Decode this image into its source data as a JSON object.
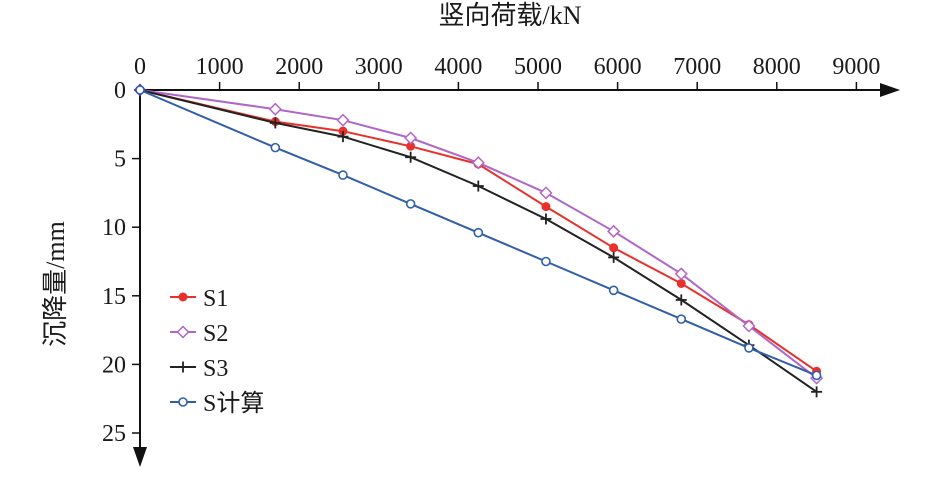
{
  "chart_data": {
    "type": "line",
    "xlabel": "竖向荷载/kN",
    "ylabel": "沉降量/mm",
    "x_axis_position": "top",
    "y_axis_inverted": true,
    "xlim": [
      0,
      9000
    ],
    "ylim": [
      0,
      25
    ],
    "x_ticks": [
      "0",
      "1000",
      "2000",
      "3000",
      "4000",
      "5000",
      "6000",
      "7000",
      "8000",
      "9000"
    ],
    "y_ticks": [
      "0",
      "5",
      "10",
      "15",
      "20",
      "25"
    ],
    "grid": false,
    "legend_position": "left",
    "series": [
      {
        "name": "S1",
        "color": "#e8312a",
        "marker": "dot",
        "x": [
          0,
          1700,
          2550,
          3400,
          4250,
          5100,
          5950,
          6800,
          7650,
          8500
        ],
        "y": [
          0,
          2.3,
          3.0,
          4.1,
          5.4,
          8.5,
          11.5,
          14.1,
          17.1,
          20.5
        ]
      },
      {
        "name": "S2",
        "color": "#b066c8",
        "marker": "diamond",
        "x": [
          0,
          1700,
          2550,
          3400,
          4250,
          5100,
          5950,
          6800,
          7650,
          8500
        ],
        "y": [
          0,
          1.4,
          2.2,
          3.5,
          5.3,
          7.5,
          10.3,
          13.4,
          17.2,
          21.0
        ]
      },
      {
        "name": "S3",
        "color": "#222222",
        "marker": "plus",
        "x": [
          0,
          1700,
          2550,
          3400,
          4250,
          5100,
          5950,
          6800,
          7650,
          8500
        ],
        "y": [
          0,
          2.4,
          3.4,
          4.9,
          7.0,
          9.4,
          12.2,
          15.3,
          18.6,
          22.0
        ]
      },
      {
        "name": "S计算",
        "color": "#2f5fa8",
        "marker": "circle",
        "x": [
          0,
          1700,
          2550,
          3400,
          4250,
          5100,
          5950,
          6800,
          7650,
          8500
        ],
        "y": [
          0,
          4.2,
          6.2,
          8.3,
          10.4,
          12.5,
          14.6,
          16.7,
          18.8,
          20.8
        ]
      }
    ]
  }
}
